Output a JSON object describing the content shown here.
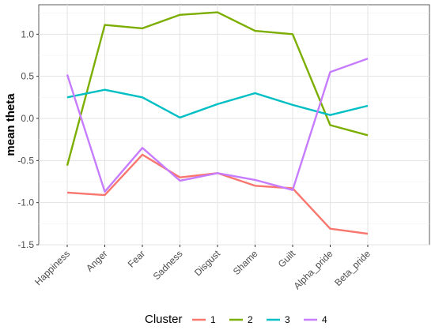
{
  "chart_data": {
    "type": "line",
    "title": "",
    "xlabel": "",
    "ylabel": "mean theta",
    "categories": [
      "Happiness",
      "Anger",
      "Fear",
      "Sadness",
      "Disgust",
      "Shame",
      "Guilt",
      "Alpha_pride",
      "Beta_pride"
    ],
    "ylim": [
      -1.5,
      1.35
    ],
    "yticks": [
      -1.5,
      -1.0,
      -0.5,
      0.0,
      0.5,
      1.0
    ],
    "ytick_labels": [
      "-1.5",
      "-1.0",
      "-0.5",
      "0.0",
      "0.5",
      "1.0"
    ],
    "grid": true,
    "legend": {
      "title": "Cluster",
      "position": "bottom"
    },
    "series": [
      {
        "name": "1",
        "color": "#F8766D",
        "values": [
          -0.88,
          -0.91,
          -0.43,
          -0.7,
          -0.65,
          -0.8,
          -0.83,
          -1.31,
          -1.37
        ]
      },
      {
        "name": "2",
        "color": "#7CAE00",
        "values": [
          -0.56,
          1.11,
          1.07,
          1.23,
          1.26,
          1.04,
          1.0,
          -0.08,
          -0.2
        ]
      },
      {
        "name": "3",
        "color": "#00BFC4",
        "values": [
          0.25,
          0.34,
          0.25,
          0.01,
          0.17,
          0.3,
          0.16,
          0.04,
          0.15
        ]
      },
      {
        "name": "4",
        "color": "#C77CFF",
        "values": [
          0.52,
          -0.87,
          -0.35,
          -0.74,
          -0.65,
          -0.73,
          -0.85,
          0.55,
          0.71
        ]
      }
    ]
  }
}
